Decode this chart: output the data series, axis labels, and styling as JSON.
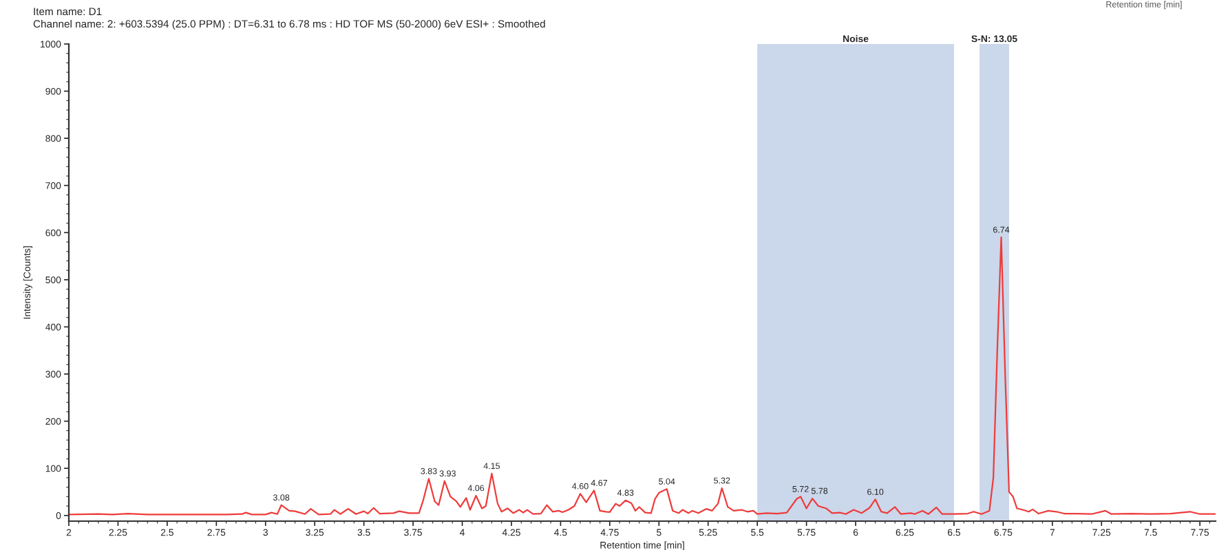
{
  "chart_data": {
    "type": "line",
    "title": "Item name: D1",
    "subtitle": "Channel name: 2: +603.5394 (25.0 PPM) : DT=6.31 to 6.78 ms : HD TOF MS (50-2000) 6eV ESI+ : Smoothed",
    "xlabel": "Retention time [min]",
    "ylabel": "Intensity [Counts]",
    "x": [
      2.0,
      2.15,
      2.22,
      2.3,
      2.4,
      2.6,
      2.8,
      2.88,
      2.9,
      2.93,
      3.0,
      3.03,
      3.06,
      3.08,
      3.12,
      3.15,
      3.2,
      3.23,
      3.27,
      3.33,
      3.35,
      3.38,
      3.42,
      3.46,
      3.5,
      3.52,
      3.55,
      3.58,
      3.65,
      3.68,
      3.73,
      3.78,
      3.8,
      3.83,
      3.86,
      3.88,
      3.91,
      3.94,
      3.97,
      3.99,
      4.02,
      4.04,
      4.07,
      4.1,
      4.12,
      4.15,
      4.18,
      4.2,
      4.23,
      4.26,
      4.29,
      4.31,
      4.33,
      4.36,
      4.4,
      4.43,
      4.46,
      4.49,
      4.51,
      4.54,
      4.57,
      4.6,
      4.63,
      4.67,
      4.7,
      4.73,
      4.75,
      4.78,
      4.8,
      4.83,
      4.86,
      4.88,
      4.9,
      4.93,
      4.96,
      4.98,
      5.0,
      5.04,
      5.07,
      5.1,
      5.12,
      5.15,
      5.17,
      5.2,
      5.24,
      5.27,
      5.3,
      5.32,
      5.35,
      5.38,
      5.42,
      5.45,
      5.48,
      5.5,
      5.55,
      5.6,
      5.65,
      5.7,
      5.72,
      5.75,
      5.78,
      5.81,
      5.85,
      5.88,
      5.92,
      5.95,
      5.99,
      6.03,
      6.07,
      6.1,
      6.13,
      6.16,
      6.2,
      6.23,
      6.28,
      6.3,
      6.34,
      6.37,
      6.41,
      6.44,
      6.5,
      6.57,
      6.6,
      6.64,
      6.68,
      6.7,
      6.72,
      6.74,
      6.76,
      6.78,
      6.8,
      6.82,
      6.85,
      6.88,
      6.9,
      6.93,
      6.98,
      7.02,
      7.06,
      7.12,
      7.2,
      7.27,
      7.3,
      7.4,
      7.5,
      7.6,
      7.7,
      7.75,
      7.83
    ],
    "series": [
      {
        "color": "#ee3b3b",
        "values": [
          2,
          3,
          2,
          4,
          2,
          2,
          2,
          3,
          6,
          2,
          2,
          6,
          3,
          22,
          10,
          9,
          3,
          14,
          2,
          3,
          12,
          3,
          14,
          3,
          9,
          4,
          16,
          4,
          5,
          9,
          5,
          5,
          30,
          78,
          30,
          22,
          73,
          40,
          30,
          18,
          37,
          12,
          42,
          15,
          20,
          89,
          25,
          8,
          15,
          5,
          12,
          6,
          12,
          3,
          4,
          22,
          8,
          10,
          7,
          12,
          20,
          46,
          28,
          53,
          10,
          8,
          7,
          25,
          20,
          32,
          26,
          10,
          18,
          6,
          5,
          35,
          48,
          56,
          10,
          5,
          12,
          5,
          10,
          5,
          14,
          10,
          25,
          58,
          18,
          10,
          12,
          8,
          10,
          3,
          5,
          4,
          6,
          35,
          40,
          15,
          36,
          20,
          15,
          5,
          6,
          3,
          12,
          5,
          16,
          34,
          8,
          5,
          18,
          3,
          5,
          3,
          10,
          3,
          17,
          3,
          3,
          4,
          8,
          3,
          10,
          80,
          350,
          590,
          300,
          50,
          40,
          15,
          12,
          8,
          13,
          4,
          10,
          8,
          4,
          4,
          3,
          10,
          3,
          4,
          3,
          4,
          8,
          3,
          3
        ]
      }
    ],
    "xlim": [
      2,
      7.83
    ],
    "xticks": [
      2,
      2.25,
      2.5,
      2.75,
      3,
      3.25,
      3.5,
      3.75,
      4,
      4.25,
      4.5,
      4.75,
      5,
      5.25,
      5.5,
      5.75,
      6,
      6.25,
      6.5,
      6.75,
      7,
      7.25,
      7.5,
      7.75
    ],
    "ylim": [
      -12,
      1000
    ],
    "yticks": [
      0,
      100,
      200,
      300,
      400,
      500,
      600,
      700,
      800,
      900,
      1000
    ],
    "bands": [
      {
        "axis": "x",
        "from": 5.5,
        "to": 6.5,
        "label": "Noise",
        "color": "#cbd7ea"
      },
      {
        "axis": "x",
        "from": 6.63,
        "to": 6.78,
        "label": "S-N: 13.05",
        "color": "#cbd7ea"
      }
    ],
    "annotations": [
      {
        "text": "3.08",
        "x": 3.08,
        "y": 22
      },
      {
        "text": "3.83",
        "x": 3.83,
        "y": 78
      },
      {
        "text": "3.93",
        "x": 3.91,
        "y": 73
      },
      {
        "text": "4.06",
        "x": 4.07,
        "y": 42
      },
      {
        "text": "4.15",
        "x": 4.15,
        "y": 89
      },
      {
        "text": "4.60",
        "x": 4.6,
        "y": 46
      },
      {
        "text": "4.67",
        "x": 4.67,
        "y": 53
      },
      {
        "text": "4.83",
        "x": 4.83,
        "y": 32
      },
      {
        "text": "5.04",
        "x": 5.04,
        "y": 56
      },
      {
        "text": "5.32",
        "x": 5.32,
        "y": 58
      },
      {
        "text": "5.72",
        "x": 5.72,
        "y": 40
      },
      {
        "text": "5.78",
        "x": 5.78,
        "y": 36
      },
      {
        "text": "6.10",
        "x": 6.1,
        "y": 34
      },
      {
        "text": "6.74",
        "x": 6.74,
        "y": 590
      },
      "Retention time [min]"
    ],
    "grid": false,
    "marker": "none",
    "line_style": "solid"
  }
}
